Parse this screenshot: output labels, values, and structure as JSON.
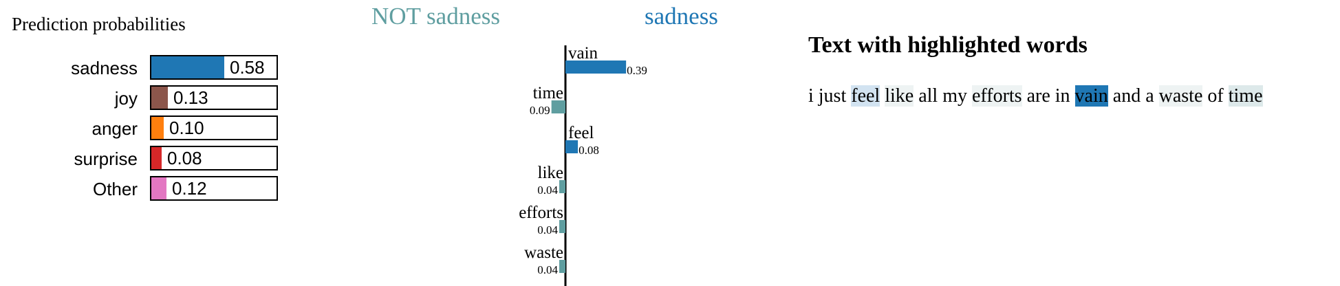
{
  "prediction": {
    "title": "Prediction probabilities",
    "items": [
      {
        "label": "sadness",
        "value": 0.58,
        "value_text": "0.58",
        "color": "#1f77b4"
      },
      {
        "label": "joy",
        "value": 0.13,
        "value_text": "0.13",
        "color": "#8c564b"
      },
      {
        "label": "anger",
        "value": 0.1,
        "value_text": "0.10",
        "color": "#ff7f0e"
      },
      {
        "label": "surprise",
        "value": 0.08,
        "value_text": "0.08",
        "color": "#d62728"
      },
      {
        "label": "Other",
        "value": 0.12,
        "value_text": "0.12",
        "color": "#e377c2"
      }
    ]
  },
  "explanation": {
    "negative_class": "NOT sadness",
    "positive_class": "sadness",
    "negative_color": "#5f9ea0",
    "positive_color": "#1f77b4"
  },
  "chart_data": {
    "type": "bar",
    "categories": [
      "vain",
      "time",
      "feel",
      "like",
      "efforts",
      "waste"
    ],
    "values": [
      0.39,
      -0.09,
      0.08,
      -0.04,
      -0.04,
      -0.04
    ],
    "value_labels": [
      "0.39",
      "0.09",
      "0.08",
      "0.04",
      "0.04",
      "0.04"
    ]
  },
  "text_panel": {
    "title": "Text with highlighted words",
    "words": [
      {
        "text": "i",
        "highlight": ""
      },
      {
        "text": "just",
        "highlight": ""
      },
      {
        "text": "feel",
        "highlight": "#d2e3f1"
      },
      {
        "text": "like",
        "highlight": "#eef3f3"
      },
      {
        "text": "all",
        "highlight": ""
      },
      {
        "text": "my",
        "highlight": ""
      },
      {
        "text": "efforts",
        "highlight": "#eef3f3"
      },
      {
        "text": "are",
        "highlight": ""
      },
      {
        "text": "in",
        "highlight": ""
      },
      {
        "text": "vain",
        "highlight": "#1f77b4"
      },
      {
        "text": "and",
        "highlight": ""
      },
      {
        "text": "a",
        "highlight": ""
      },
      {
        "text": "waste",
        "highlight": "#eef3f3"
      },
      {
        "text": "of",
        "highlight": ""
      },
      {
        "text": "time",
        "highlight": "#dde9ea"
      }
    ]
  }
}
